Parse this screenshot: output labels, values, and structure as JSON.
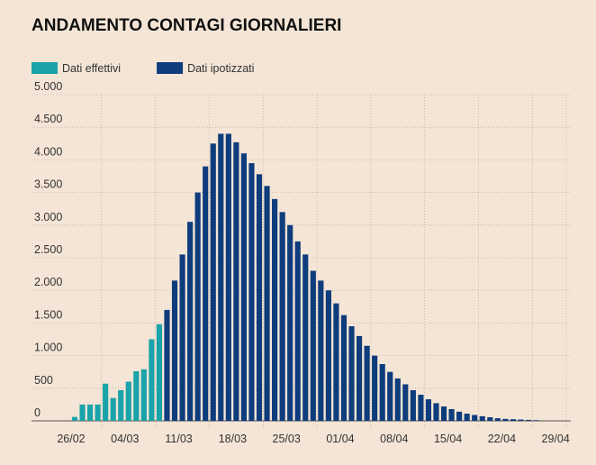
{
  "chart_data": {
    "type": "bar",
    "title": "ANDAMENTO CONTAGI GIORNALIERI",
    "categories": [
      "26/02",
      null,
      null,
      null,
      null,
      null,
      null,
      "04/03",
      null,
      null,
      null,
      null,
      null,
      null,
      "11/03",
      null,
      null,
      null,
      null,
      null,
      null,
      "18/03",
      null,
      null,
      null,
      null,
      null,
      null,
      "25/03",
      null,
      null,
      null,
      null,
      null,
      null,
      "01/04",
      null,
      null,
      null,
      null,
      null,
      null,
      "08/04",
      null,
      null,
      null,
      null,
      null,
      null,
      "15/04",
      null,
      null,
      null,
      null,
      null,
      null,
      "22/04",
      null,
      null,
      null,
      null,
      null,
      null,
      "29/04",
      null
    ],
    "series": [
      {
        "name": "Dati effettivi",
        "color": "#1aa3a8",
        "values": [
          60,
          250,
          250,
          250,
          570,
          350,
          470,
          600,
          760,
          790,
          1250,
          1480,
          null,
          null,
          null,
          null,
          null,
          null,
          null,
          null,
          null,
          null,
          null,
          null,
          null,
          null,
          null,
          null,
          null,
          null,
          null,
          null,
          null,
          null,
          null,
          null,
          null,
          null,
          null,
          null,
          null,
          null,
          null,
          null,
          null,
          null,
          null,
          null,
          null,
          null,
          null,
          null,
          null,
          null,
          null,
          null,
          null,
          null,
          null,
          null,
          null,
          null,
          null,
          null,
          null
        ]
      },
      {
        "name": "Dati ipotizzati",
        "color": "#0e3c7c",
        "values": [
          null,
          null,
          null,
          null,
          null,
          null,
          null,
          null,
          null,
          null,
          null,
          null,
          1700,
          2150,
          2550,
          3050,
          3500,
          3900,
          4250,
          4400,
          4400,
          4270,
          4100,
          3950,
          3780,
          3600,
          3400,
          3200,
          3000,
          2750,
          2550,
          2300,
          2150,
          2000,
          1800,
          1620,
          1450,
          1300,
          1150,
          1000,
          870,
          750,
          650,
          560,
          470,
          400,
          330,
          270,
          220,
          180,
          140,
          110,
          90,
          70,
          55,
          40,
          30,
          25,
          20,
          15,
          10,
          null,
          null,
          null,
          null
        ]
      }
    ],
    "ylim": [
      0,
      5000
    ],
    "yticks": [
      0,
      500,
      {
        "value": 1000,
        "label": "1.000"
      },
      {
        "value": 1500,
        "label": "1.500"
      },
      {
        "value": 2000,
        "label": "2.000"
      },
      {
        "value": 2500,
        "label": "2.500"
      },
      {
        "value": 3000,
        "label": "3.000"
      },
      {
        "value": 3500,
        "label": "3.500"
      },
      {
        "value": 4000,
        "label": "4.000"
      },
      {
        "value": 4500,
        "label": "4.500"
      },
      {
        "value": 5000,
        "label": "5.000"
      }
    ],
    "grid": true,
    "legend": "top-left"
  }
}
